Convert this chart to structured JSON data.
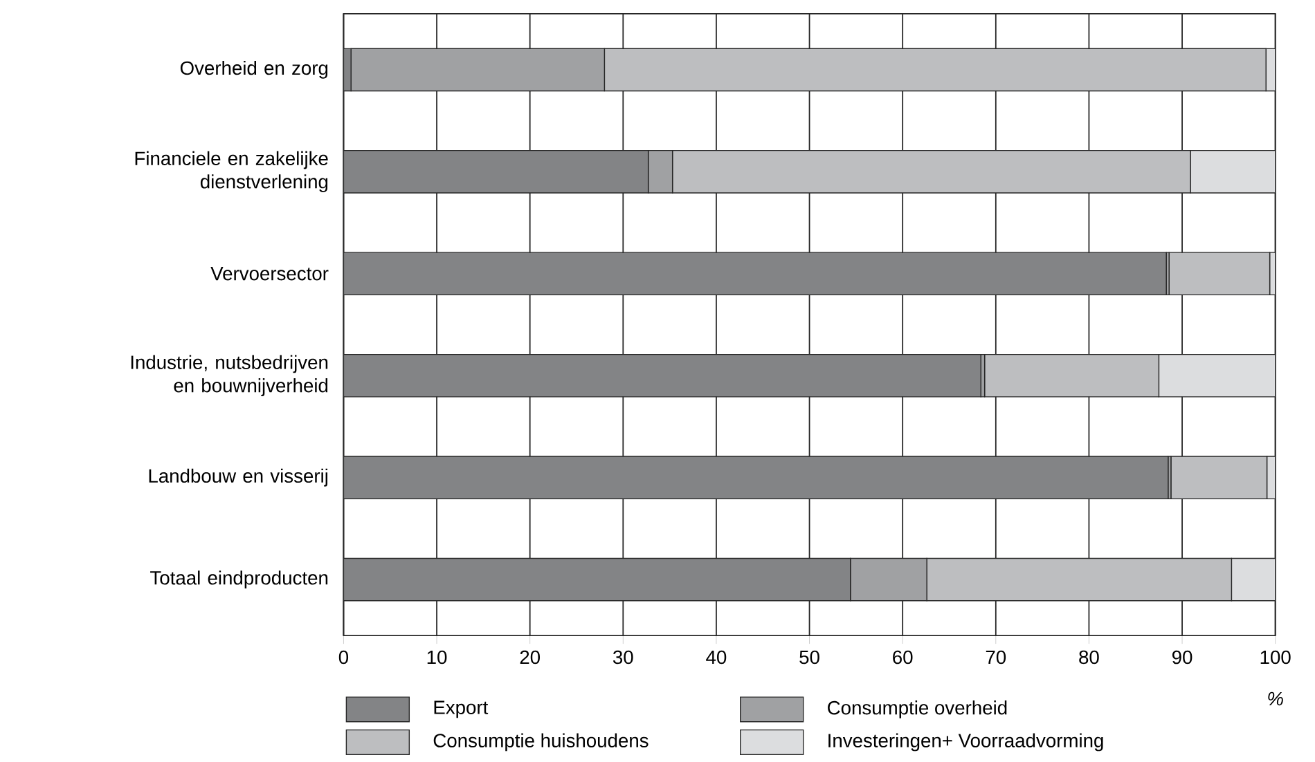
{
  "chart_data": {
    "type": "bar",
    "orientation": "horizontal",
    "stacked": true,
    "xlabel": "%",
    "categories": [
      "Overheid en zorg",
      "Financiele en zakelijke dienstverlening",
      "Vervoersector",
      "Industrie, nutsbedrijven en bouwnijverheid",
      "Landbouw en visserij",
      "Totaal eindproducten"
    ],
    "series": [
      {
        "name": "Export",
        "color": "#838486",
        "values": [
          0.8,
          32.7,
          88.3,
          68.4,
          88.5,
          54.4
        ]
      },
      {
        "name": "Consumptie overheid",
        "color": "#a0a1a3",
        "values": [
          27.2,
          2.6,
          0.3,
          0.4,
          0.3,
          8.2
        ]
      },
      {
        "name": "Consumptie huishoudens",
        "color": "#bdbec0",
        "values": [
          71,
          55.6,
          10.8,
          18.7,
          10.3,
          32.7
        ]
      },
      {
        "name": "Investeringen+ Voorraadvorming",
        "color": "#dcdddf",
        "values": [
          1,
          9.1,
          0.6,
          12.5,
          0.9,
          4.7
        ]
      }
    ],
    "xlim": [
      0,
      100
    ],
    "xticks": [
      0,
      10,
      20,
      30,
      40,
      50,
      60,
      70,
      80,
      90,
      100
    ],
    "grid": "x",
    "legend": "bottom"
  }
}
